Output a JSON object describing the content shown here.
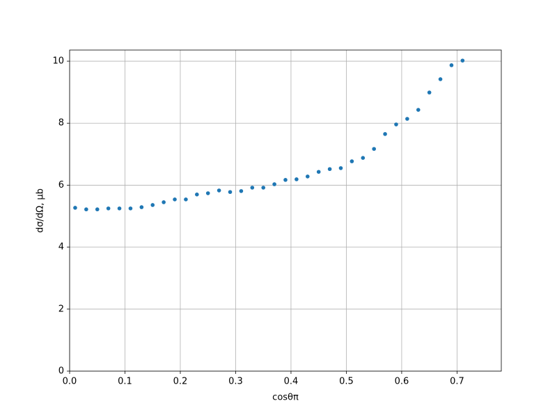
{
  "chart_data": {
    "type": "scatter",
    "xlabel": "cosθπ",
    "ylabel": "dσ/dΩ, μb",
    "x": [
      0.01,
      0.03,
      0.05,
      0.07,
      0.09,
      0.11,
      0.13,
      0.15,
      0.17,
      0.19,
      0.21,
      0.23,
      0.25,
      0.27,
      0.29,
      0.31,
      0.33,
      0.35,
      0.37,
      0.39,
      0.41,
      0.43,
      0.45,
      0.47,
      0.49,
      0.51,
      0.53,
      0.55,
      0.57,
      0.59,
      0.61,
      0.63,
      0.65,
      0.67,
      0.69,
      0.71
    ],
    "values": [
      5.27,
      5.22,
      5.22,
      5.25,
      5.25,
      5.25,
      5.29,
      5.36,
      5.45,
      5.54,
      5.54,
      5.7,
      5.74,
      5.83,
      5.78,
      5.81,
      5.92,
      5.92,
      6.03,
      6.17,
      6.19,
      6.28,
      6.43,
      6.52,
      6.55,
      6.77,
      6.88,
      7.17,
      7.65,
      7.96,
      8.14,
      8.43,
      8.99,
      9.42,
      9.87,
      10.02
    ],
    "color": "#1f77b4",
    "xlim": [
      0,
      0.78
    ],
    "ylim": [
      0,
      10.36
    ],
    "xticks": [
      {
        "value": 0,
        "label": "0.0"
      },
      0.1,
      0.2,
      0.3,
      0.4,
      0.5,
      0.6,
      0.7
    ],
    "yticks": [
      0,
      2,
      4,
      6,
      8,
      10
    ],
    "grid": true
  }
}
